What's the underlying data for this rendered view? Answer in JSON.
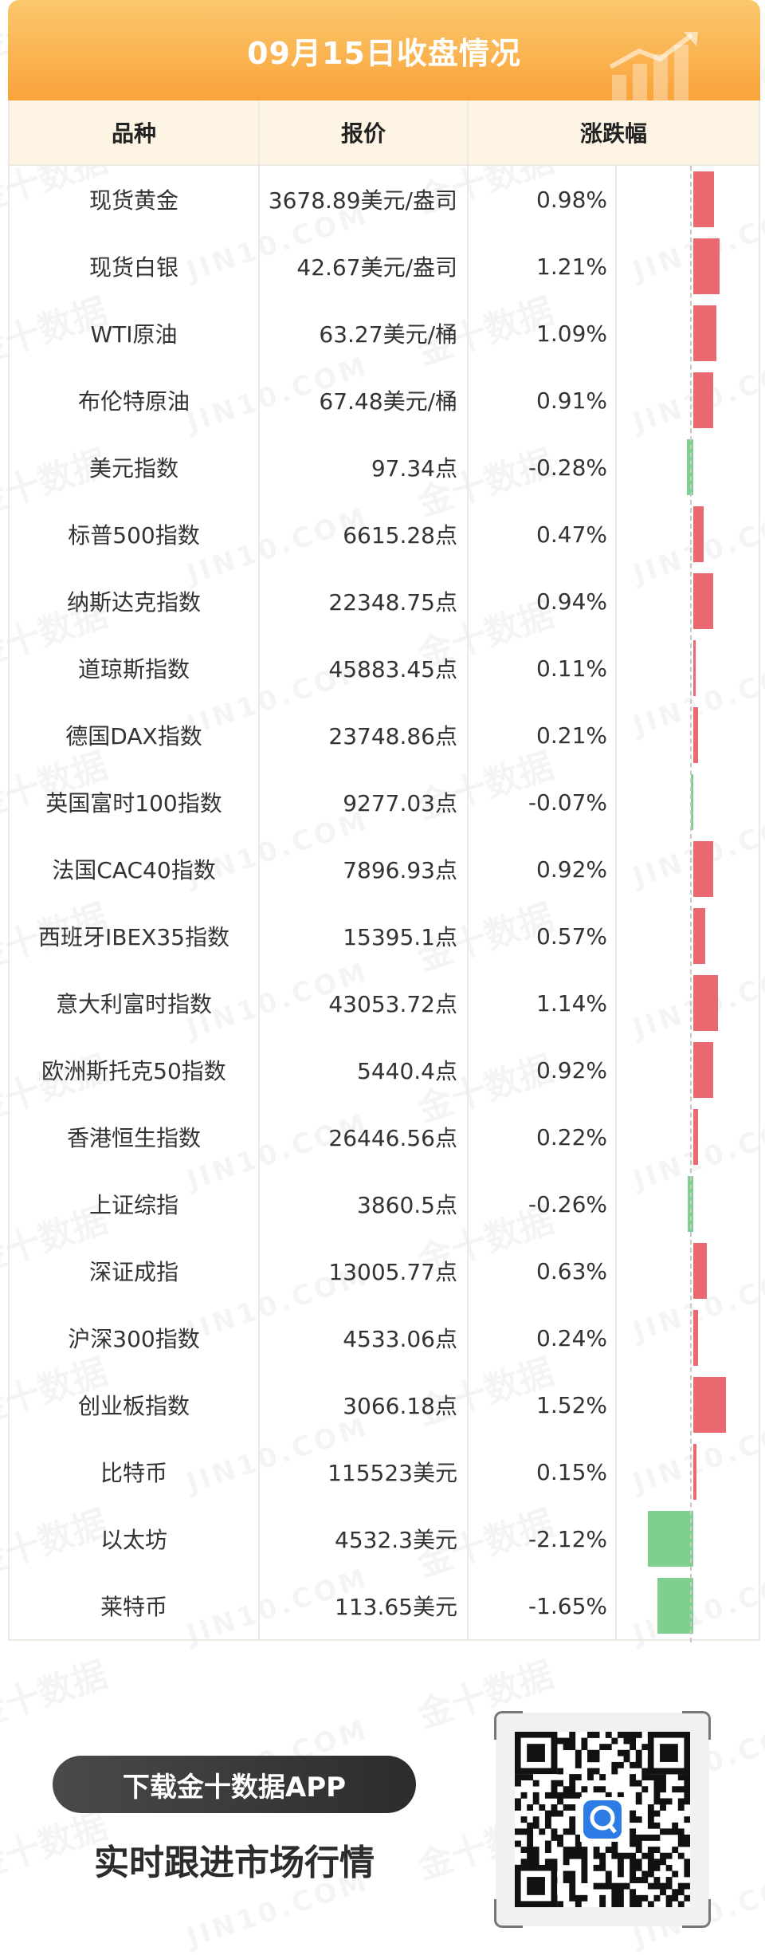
{
  "title": "09月15日收盘情况",
  "headers": {
    "name": "品种",
    "price": "报价",
    "change": "涨跌幅"
  },
  "rows": [
    {
      "name": "现货黄金",
      "price": "3678.89美元/盎司",
      "change": "0.98%",
      "pct": 0.98
    },
    {
      "name": "现货白银",
      "price": "42.67美元/盎司",
      "change": "1.21%",
      "pct": 1.21
    },
    {
      "name": "WTI原油",
      "price": "63.27美元/桶",
      "change": "1.09%",
      "pct": 1.09
    },
    {
      "name": "布伦特原油",
      "price": "67.48美元/桶",
      "change": "0.91%",
      "pct": 0.91
    },
    {
      "name": "美元指数",
      "price": "97.34点",
      "change": "-0.28%",
      "pct": -0.28
    },
    {
      "name": "标普500指数",
      "price": "6615.28点",
      "change": "0.47%",
      "pct": 0.47
    },
    {
      "name": "纳斯达克指数",
      "price": "22348.75点",
      "change": "0.94%",
      "pct": 0.94
    },
    {
      "name": "道琼斯指数",
      "price": "45883.45点",
      "change": "0.11%",
      "pct": 0.11
    },
    {
      "name": "德国DAX指数",
      "price": "23748.86点",
      "change": "0.21%",
      "pct": 0.21
    },
    {
      "name": "英国富时100指数",
      "price": "9277.03点",
      "change": "-0.07%",
      "pct": -0.07
    },
    {
      "name": "法国CAC40指数",
      "price": "7896.93点",
      "change": "0.92%",
      "pct": 0.92
    },
    {
      "name": "西班牙IBEX35指数",
      "price": "15395.1点",
      "change": "0.57%",
      "pct": 0.57
    },
    {
      "name": "意大利富时指数",
      "price": "43053.72点",
      "change": "1.14%",
      "pct": 1.14
    },
    {
      "name": "欧洲斯托克50指数",
      "price": "5440.4点",
      "change": "0.92%",
      "pct": 0.92
    },
    {
      "name": "香港恒生指数",
      "price": "26446.56点",
      "change": "0.22%",
      "pct": 0.22
    },
    {
      "name": "上证综指",
      "price": "3860.5点",
      "change": "-0.26%",
      "pct": -0.26
    },
    {
      "name": "深证成指",
      "price": "13005.77点",
      "change": "0.63%",
      "pct": 0.63
    },
    {
      "name": "沪深300指数",
      "price": "4533.06点",
      "change": "0.24%",
      "pct": 0.24
    },
    {
      "name": "创业板指数",
      "price": "3066.18点",
      "change": "1.52%",
      "pct": 1.52
    },
    {
      "name": "比特币",
      "price": "115523美元",
      "change": "0.15%",
      "pct": 0.15
    },
    {
      "name": "以太坊",
      "price": "4532.3美元",
      "change": "-2.12%",
      "pct": -2.12
    },
    {
      "name": "莱特币",
      "price": "113.65美元",
      "change": "-1.65%",
      "pct": -1.65
    }
  ],
  "footer": {
    "download": "下载金十数据APP",
    "slogan": "实时跟进市场行情"
  },
  "watermark": {
    "brand": "金十数据",
    "domain": "JIN10.COM"
  },
  "colors": {
    "up": "#e8696f",
    "down": "#7fcf8e",
    "header_bg": "#fdf4e4",
    "title_from": "#fbc86e",
    "title_to": "#f9a33a"
  },
  "icons": {
    "title_decoration": "bar-chart-up-arrow-icon",
    "qr": "qr-code-icon",
    "app_logo": "jin10-app-icon"
  }
}
